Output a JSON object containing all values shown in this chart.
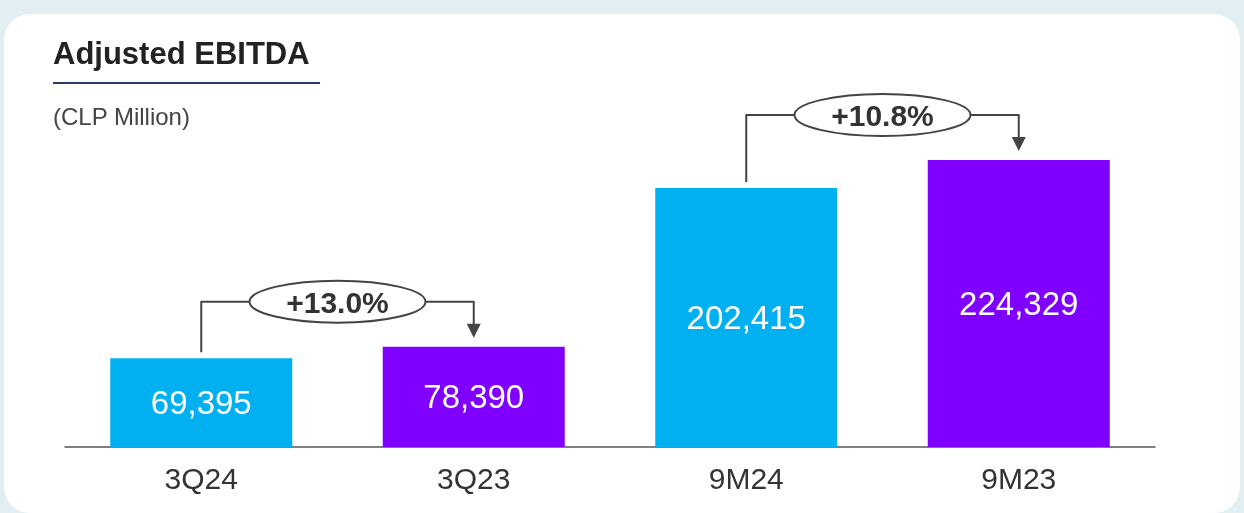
{
  "chart_data": {
    "type": "bar",
    "title": "Adjusted EBITDA",
    "subtitle": "(CLP Million)",
    "categories": [
      "3Q24",
      "3Q23",
      "9M24",
      "9M23"
    ],
    "values": [
      69395,
      78390,
      202415,
      224329
    ],
    "colors": [
      "#00b0f0",
      "#8000ff",
      "#00b0f0",
      "#8000ff"
    ],
    "value_labels": [
      "69,395",
      "78,390",
      "202,415",
      "224,329"
    ],
    "annotations": [
      "+13.0%",
      "+10.8%"
    ]
  }
}
